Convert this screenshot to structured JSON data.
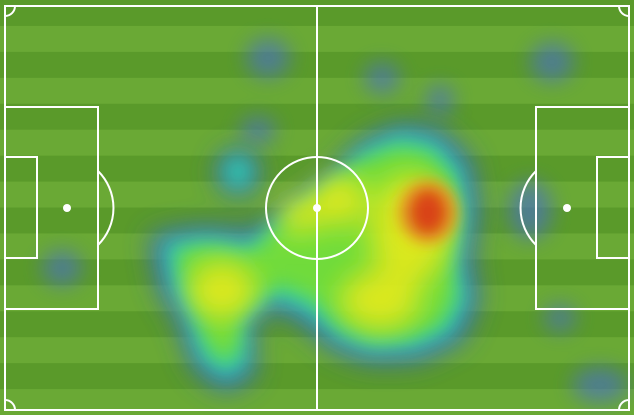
{
  "pitch": {
    "stripe_dark": "#5a9a2a",
    "stripe_light": "#6aa935",
    "line_color": "#ffffff",
    "stripe_count": 16
  },
  "heatmap": {
    "colors": {
      "low": "#3f6fd0",
      "mid_low": "#2fd4c0",
      "mid": "#7ee23a",
      "mid_high": "#e9ee12",
      "high": "#e23a14"
    },
    "hotspot": "right-center"
  }
}
